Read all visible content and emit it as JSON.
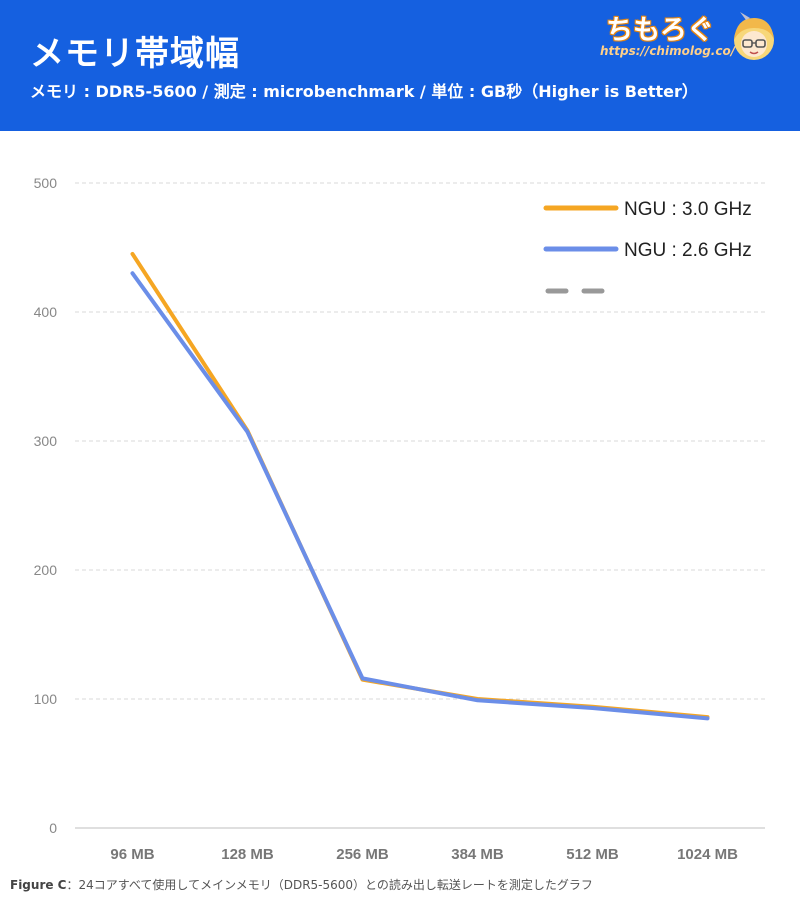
{
  "header": {
    "title": "メモリ帯域幅",
    "subtitle": "メモリ : DDR5-5600 / 測定 : microbenchmark / 単位 : GB秒（Higher is Better）",
    "logo_text": "ちもろぐ",
    "logo_url": "https://chimolog.co/",
    "bg_color": "#1560e0"
  },
  "caption": {
    "label": "Figure C",
    "text": "：24コアすべて使用してメインメモリ（DDR5-5600）との読み出し転送レートを測定したグラフ"
  },
  "chart_data": {
    "type": "line",
    "categories": [
      "96 MB",
      "128 MB",
      "256 MB",
      "384 MB",
      "512 MB",
      "1024 MB"
    ],
    "series": [
      {
        "name": "NGU : 3.0 GHz",
        "color": "#f5a623",
        "values": [
          445,
          308,
          115,
          100,
          94,
          86
        ]
      },
      {
        "name": "NGU : 2.6 GHz",
        "color": "#6b8ee8",
        "values": [
          430,
          307,
          116,
          99,
          93,
          85
        ]
      }
    ],
    "legend_extra": {
      "color": "#999999",
      "style": "dashed"
    },
    "ylim": [
      0,
      500
    ],
    "yticks": [
      0,
      100,
      200,
      300,
      400,
      500
    ],
    "grid": true,
    "legend_position": "top-right"
  }
}
